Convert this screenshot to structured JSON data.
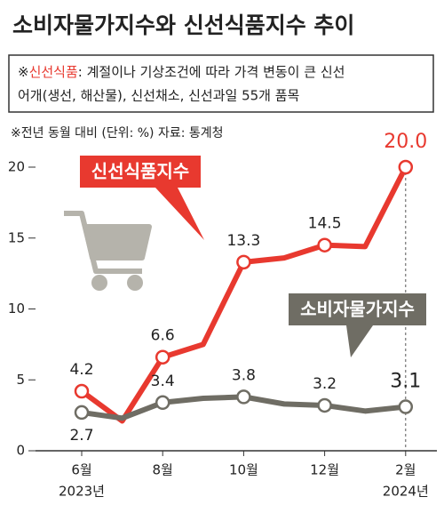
{
  "chart_data": {
    "type": "line",
    "title": "소비자물가지수와 신선식품지수 추이",
    "note": {
      "prefix": "※",
      "term": "신선식품",
      "text": ": 계절이나 기상조건에 따라 가격 변동이 큰 신선",
      "line2": "어개(생선, 해산물), 신선채소, 신선과일 55개 품목"
    },
    "source": "※전년 동월 대비 (단위: %) 자료: 통계청",
    "categories": [
      "6월",
      null,
      "8월",
      null,
      "10월",
      null,
      "12월",
      null,
      "2월"
    ],
    "year_labels": [
      "2023년",
      null,
      null,
      null,
      null,
      null,
      null,
      null,
      "2024년"
    ],
    "series": [
      {
        "name": "신선식품지수",
        "color": "#e8392f",
        "values": [
          4.2,
          2.1,
          6.6,
          7.5,
          13.3,
          13.6,
          14.5,
          14.4,
          20.0
        ],
        "value_labels": [
          "4.2",
          null,
          "6.6",
          null,
          "13.3",
          null,
          "14.5",
          null,
          "20.0"
        ]
      },
      {
        "name": "소비자물가지수",
        "color": "#6f6d64",
        "values": [
          2.7,
          2.3,
          3.4,
          3.7,
          3.8,
          3.3,
          3.2,
          2.8,
          3.1
        ],
        "value_labels": [
          "2.7",
          null,
          "3.4",
          null,
          "3.8",
          null,
          "3.2",
          null,
          "3.1"
        ]
      }
    ],
    "ylim": [
      0,
      20
    ],
    "yticks": [
      0,
      5,
      10,
      15,
      20
    ]
  }
}
